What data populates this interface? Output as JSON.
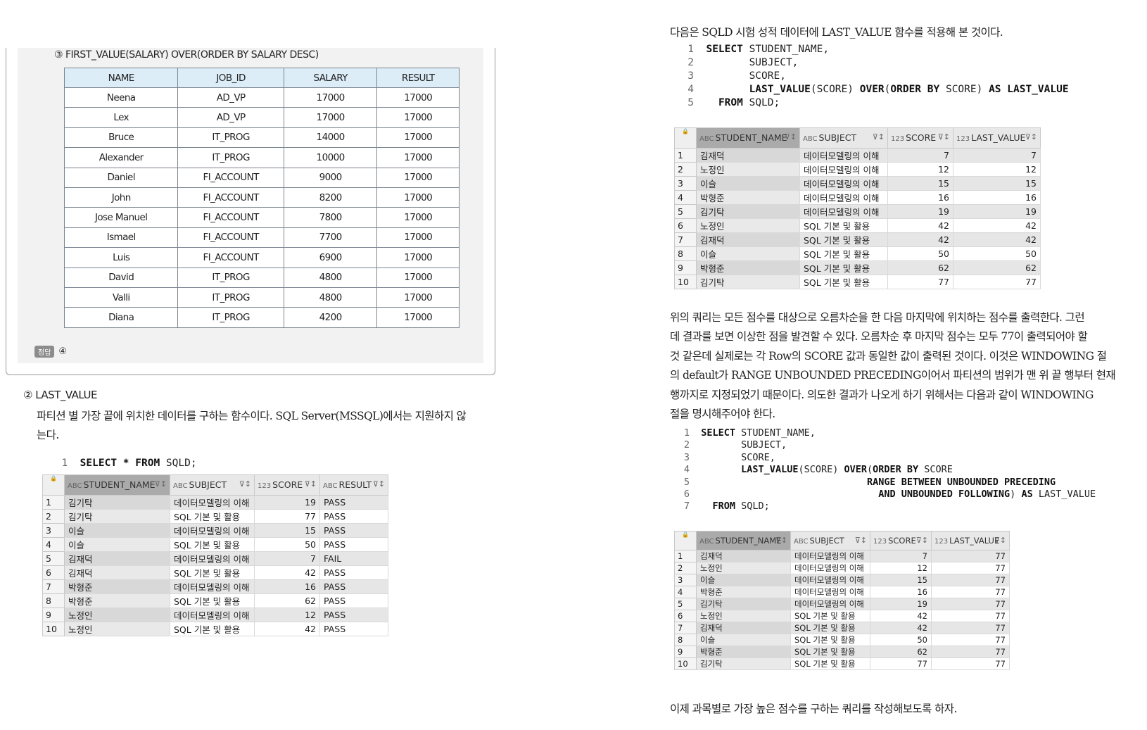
{
  "quiz": {
    "caption": "③ FIRST_VALUE(SALARY) OVER(ORDER BY SALARY DESC)",
    "headers": [
      "NAME",
      "JOB_ID",
      "SALARY",
      "RESULT"
    ],
    "rows": [
      [
        "Neena",
        "AD_VP",
        "17000",
        "17000"
      ],
      [
        "Lex",
        "AD_VP",
        "17000",
        "17000"
      ],
      [
        "Bruce",
        "IT_PROG",
        "14000",
        "17000"
      ],
      [
        "Alexander",
        "IT_PROG",
        "10000",
        "17000"
      ],
      [
        "Daniel",
        "FI_ACCOUNT",
        "9000",
        "17000"
      ],
      [
        "John",
        "FI_ACCOUNT",
        "8200",
        "17000"
      ],
      [
        "Jose Manuel",
        "FI_ACCOUNT",
        "7800",
        "17000"
      ],
      [
        "Ismael",
        "FI_ACCOUNT",
        "7700",
        "17000"
      ],
      [
        "Luis",
        "FI_ACCOUNT",
        "6900",
        "17000"
      ],
      [
        "David",
        "IT_PROG",
        "4800",
        "17000"
      ],
      [
        "Valli",
        "IT_PROG",
        "4800",
        "17000"
      ],
      [
        "Diana",
        "IT_PROG",
        "4200",
        "17000"
      ]
    ],
    "answer_tag": "정답",
    "answer": "④"
  },
  "last_value_section": {
    "heading": "② LAST_VALUE",
    "desc1": "파티션 별 가장 끝에 위치한 데이터를 구하는 함수이다. SQL Server(MSSQL)에서는 지원하지 않",
    "desc2": "는다.",
    "code_ln": "1",
    "code_kw1": "SELECT",
    "code_mid": " * ",
    "code_kw2": "FROM",
    "code_rest": " SQLD;",
    "grid_headers": [
      "STUDENT_NAME",
      "SUBJECT",
      "SCORE",
      "RESULT"
    ],
    "grid_types": [
      "ABC",
      "ABC",
      "123",
      "ABC"
    ],
    "grid_rows": [
      [
        "1",
        "김기탁",
        "데이터모델링의 이해",
        "19",
        "PASS"
      ],
      [
        "2",
        "김기탁",
        "SQL 기본 및 활용",
        "77",
        "PASS"
      ],
      [
        "3",
        "이슬",
        "데이터모델링의 이해",
        "15",
        "PASS"
      ],
      [
        "4",
        "이슬",
        "SQL 기본 및 활용",
        "50",
        "PASS"
      ],
      [
        "5",
        "김재덕",
        "데이터모델링의 이해",
        "7",
        "FAIL"
      ],
      [
        "6",
        "김재덕",
        "SQL 기본 및 활용",
        "42",
        "PASS"
      ],
      [
        "7",
        "박형준",
        "데이터모델링의 이해",
        "16",
        "PASS"
      ],
      [
        "8",
        "박형준",
        "SQL 기본 및 활용",
        "62",
        "PASS"
      ],
      [
        "9",
        "노정인",
        "데이터모델링의 이해",
        "12",
        "PASS"
      ],
      [
        "10",
        "노정인",
        "SQL 기본 및 활용",
        "42",
        "PASS"
      ]
    ]
  },
  "right": {
    "intro": "다음은 SQLD 시험 성적 데이터에 LAST_VALUE 함수를 적용해 본 것이다.",
    "code1": [
      {
        "n": "1",
        "parts": [
          [
            "k",
            "SELECT"
          ],
          [
            "t",
            " STUDENT_NAME,"
          ]
        ]
      },
      {
        "n": "2",
        "parts": [
          [
            "t",
            "       SUBJECT,"
          ]
        ]
      },
      {
        "n": "3",
        "parts": [
          [
            "t",
            "       SCORE,"
          ]
        ]
      },
      {
        "n": "4",
        "parts": [
          [
            "t",
            "       "
          ],
          [
            "k",
            "LAST_VALUE"
          ],
          [
            "t",
            "(SCORE) "
          ],
          [
            "k",
            "OVER"
          ],
          [
            "t",
            "("
          ],
          [
            "k",
            "ORDER BY"
          ],
          [
            "t",
            " SCORE) "
          ],
          [
            "k",
            "AS"
          ],
          [
            "t",
            " "
          ],
          [
            "k",
            "LAST_VALUE"
          ]
        ]
      },
      {
        "n": "5",
        "parts": [
          [
            "t",
            "  "
          ],
          [
            "k",
            "FROM"
          ],
          [
            "t",
            " SQLD;"
          ]
        ]
      }
    ],
    "grid_headers": [
      "STUDENT_NAME",
      "SUBJECT",
      "SCORE",
      "LAST_VALUE"
    ],
    "grid_types": [
      "ABC",
      "ABC",
      "123",
      "123"
    ],
    "grid1_rows": [
      [
        "1",
        "김재덕",
        "데이터모델링의 이해",
        "7",
        "7"
      ],
      [
        "2",
        "노정인",
        "데이터모델링의 이해",
        "12",
        "12"
      ],
      [
        "3",
        "이슬",
        "데이터모델링의 이해",
        "15",
        "15"
      ],
      [
        "4",
        "박형준",
        "데이터모델링의 이해",
        "16",
        "16"
      ],
      [
        "5",
        "김기탁",
        "데이터모델링의 이해",
        "19",
        "19"
      ],
      [
        "6",
        "노정인",
        "SQL 기본 및 활용",
        "42",
        "42"
      ],
      [
        "7",
        "김재덕",
        "SQL 기본 및 활용",
        "42",
        "42"
      ],
      [
        "8",
        "이슬",
        "SQL 기본 및 활용",
        "50",
        "50"
      ],
      [
        "9",
        "박형준",
        "SQL 기본 및 활용",
        "62",
        "62"
      ],
      [
        "10",
        "김기탁",
        "SQL 기본 및 활용",
        "77",
        "77"
      ]
    ],
    "para": [
      "위의 쿼리는 모든 점수를 대상으로 오름차순을 한 다음 마지막에 위치하는 점수를 출력한다. 그런",
      "데 결과를 보면 이상한 점을 발견할 수 있다. 오름차순 후 마지막 점수는 모두 77이 출력되어야 할",
      "것 같은데 실제로는 각 Row의 SCORE 값과 동일한 값이 출력된 것이다. 이것은 WINDOWING 절",
      "의 default가 RANGE UNBOUNDED PRECEDING이어서 파티션의 범위가 맨 위 끝 행부터 현재",
      "행까지로 지정되었기 때문이다. 의도한 결과가 나오게 하기 위해서는 다음과 같이 WINDOWING",
      "절을 명시해주어야 한다."
    ],
    "code2": [
      {
        "n": "1",
        "parts": [
          [
            "k",
            "SELECT"
          ],
          [
            "t",
            " STUDENT_NAME,"
          ]
        ]
      },
      {
        "n": "2",
        "parts": [
          [
            "t",
            "       SUBJECT,"
          ]
        ]
      },
      {
        "n": "3",
        "parts": [
          [
            "t",
            "       SCORE,"
          ]
        ]
      },
      {
        "n": "4",
        "parts": [
          [
            "t",
            "       "
          ],
          [
            "k",
            "LAST_VALUE"
          ],
          [
            "t",
            "(SCORE) "
          ],
          [
            "k",
            "OVER"
          ],
          [
            "t",
            "("
          ],
          [
            "k",
            "ORDER BY"
          ],
          [
            "t",
            " SCORE"
          ]
        ]
      },
      {
        "n": "5",
        "parts": [
          [
            "t",
            "                             "
          ],
          [
            "k",
            "RANGE BETWEEN UNBOUNDED PRECEDING"
          ]
        ]
      },
      {
        "n": "6",
        "parts": [
          [
            "t",
            "                               "
          ],
          [
            "k",
            "AND UNBOUNDED FOLLOWING"
          ],
          [
            "t",
            ") "
          ],
          [
            "k",
            "AS"
          ],
          [
            "t",
            " LAST_VALUE"
          ]
        ]
      },
      {
        "n": "7",
        "parts": [
          [
            "t",
            "  "
          ],
          [
            "k",
            "FROM"
          ],
          [
            "t",
            " SQLD;"
          ]
        ]
      }
    ],
    "grid2_rows": [
      [
        "1",
        "김재덕",
        "데이터모델링의 이해",
        "7",
        "77"
      ],
      [
        "2",
        "노정인",
        "데이터모델링의 이해",
        "12",
        "77"
      ],
      [
        "3",
        "이슬",
        "데이터모델링의 이해",
        "15",
        "77"
      ],
      [
        "4",
        "박형준",
        "데이터모델링의 이해",
        "16",
        "77"
      ],
      [
        "5",
        "김기탁",
        "데이터모델링의 이해",
        "19",
        "77"
      ],
      [
        "6",
        "노정인",
        "SQL 기본 및 활용",
        "42",
        "77"
      ],
      [
        "7",
        "김재덕",
        "SQL 기본 및 활용",
        "42",
        "77"
      ],
      [
        "8",
        "이슬",
        "SQL 기본 및 활용",
        "50",
        "77"
      ],
      [
        "9",
        "박형준",
        "SQL 기본 및 활용",
        "62",
        "77"
      ],
      [
        "10",
        "김기탁",
        "SQL 기본 및 활용",
        "77",
        "77"
      ]
    ],
    "closing": "이제 과목별로 가장 높은 점수를 구하는 쿼리를 작성해보도록 하자."
  }
}
